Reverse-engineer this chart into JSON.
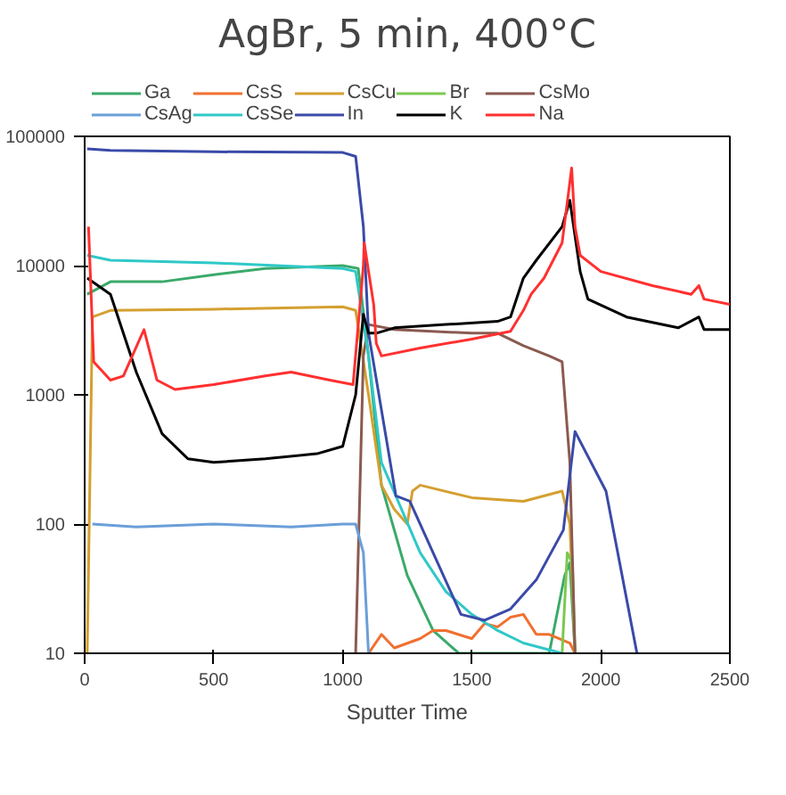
{
  "chart_data": {
    "type": "line",
    "title": "AgBr, 5 min, 400°C",
    "xlabel": "Sputter Time",
    "log": "y",
    "grid": false,
    "legend": "top",
    "marker": "none",
    "line_style": "solid",
    "xlim": [
      0,
      2500
    ],
    "xticks": [
      0,
      500,
      1000,
      1500,
      2000,
      2500
    ],
    "ylim": [
      10,
      100000
    ],
    "yticks": [
      10,
      100,
      1000,
      10000,
      100000
    ],
    "series": [
      {
        "name": "Ga",
        "color": "#3aaa6a",
        "x": [
          10,
          100,
          300,
          500,
          700,
          1000,
          1060,
          1100,
          1150,
          1250,
          1350,
          1450,
          1800,
          1860,
          1880,
          1900
        ],
        "values": [
          6000,
          7500,
          7500,
          8500,
          9500,
          10000,
          9500,
          2000,
          200,
          40,
          15,
          10,
          10,
          40,
          50,
          10
        ]
      },
      {
        "name": "CsS",
        "color": "#f07030",
        "x": [
          1100,
          1150,
          1200,
          1300,
          1350,
          1400,
          1500,
          1550,
          1600,
          1650,
          1700,
          1750,
          1800,
          1880,
          1900
        ],
        "values": [
          10,
          14,
          11,
          13,
          15,
          15,
          13,
          17,
          16,
          19,
          20,
          14,
          14,
          12,
          10
        ]
      },
      {
        "name": "CsCu",
        "color": "#d4a030",
        "x": [
          10,
          30,
          100,
          500,
          1000,
          1050,
          1100,
          1150,
          1200,
          1250,
          1270,
          1300,
          1500,
          1700,
          1850,
          1880,
          1900
        ],
        "values": [
          10,
          4000,
          4500,
          4600,
          4800,
          4500,
          1000,
          200,
          130,
          100,
          180,
          200,
          160,
          150,
          180,
          100,
          10
        ]
      },
      {
        "name": "Br",
        "color": "#7cc850",
        "x": [
          1850,
          1870,
          1890,
          1900
        ],
        "values": [
          10,
          60,
          50,
          10
        ]
      },
      {
        "name": "CsMo",
        "color": "#8b5a50",
        "x": [
          1050,
          1080,
          1100,
          1200,
          1500,
          1600,
          1700,
          1800,
          1850,
          1880,
          1900
        ],
        "values": [
          10,
          2000,
          3500,
          3200,
          3000,
          3000,
          2400,
          2000,
          1800,
          300,
          10
        ]
      },
      {
        "name": "CsAg",
        "color": "#6a9fd8",
        "x": [
          30,
          200,
          500,
          800,
          1000,
          1050,
          1080,
          1100
        ],
        "values": [
          100,
          95,
          100,
          95,
          100,
          100,
          60,
          10
        ]
      },
      {
        "name": "CsSe",
        "color": "#30c8c8",
        "x": [
          10,
          100,
          500,
          1000,
          1050,
          1100,
          1150,
          1300,
          1400,
          1500,
          1600,
          1700,
          1850
        ],
        "values": [
          12000,
          11000,
          10500,
          9500,
          9000,
          2000,
          300,
          60,
          30,
          20,
          15,
          12,
          10
        ]
      },
      {
        "name": "In",
        "color": "#3a4aa8",
        "x": [
          10,
          100,
          500,
          1000,
          1050,
          1080,
          1100,
          1206,
          1260,
          1458,
          1550,
          1650,
          1750,
          1855,
          1900,
          2020,
          2140
        ],
        "values": [
          80000,
          78000,
          76000,
          75000,
          70000,
          20000,
          3000,
          165,
          150,
          20,
          18,
          22,
          37,
          90,
          520,
          180,
          10
        ]
      },
      {
        "name": "K",
        "color": "#000000",
        "x": [
          10,
          100,
          200,
          300,
          400,
          500,
          700,
          900,
          1000,
          1050,
          1080,
          1100,
          1130,
          1200,
          1400,
          1600,
          1650,
          1700,
          1750,
          1850,
          1880,
          1920,
          1950,
          2100,
          2300,
          2380,
          2400,
          2500
        ],
        "values": [
          8000,
          6000,
          1500,
          500,
          320,
          300,
          320,
          350,
          400,
          1000,
          4200,
          3000,
          3000,
          3300,
          3500,
          3700,
          4000,
          8000,
          11000,
          20000,
          32000,
          9000,
          5500,
          4000,
          3300,
          4000,
          3200,
          3200
        ]
      },
      {
        "name": "Na",
        "color": "#ff3030",
        "x": [
          15,
          35,
          100,
          150,
          230,
          280,
          350,
          500,
          700,
          800,
          950,
          1040,
          1080,
          1083,
          1120,
          1130,
          1150,
          1300,
          1500,
          1650,
          1700,
          1730,
          1780,
          1850,
          1887,
          1900,
          1920,
          2000,
          2200,
          2350,
          2380,
          2400,
          2500
        ],
        "values": [
          20000,
          1800,
          1300,
          1400,
          3200,
          1300,
          1100,
          1200,
          1400,
          1500,
          1300,
          1200,
          10000,
          15000,
          5000,
          2500,
          2000,
          2300,
          2700,
          3100,
          4500,
          6000,
          8000,
          15000,
          57000,
          20000,
          12000,
          9000,
          7000,
          6000,
          7000,
          5500,
          5000
        ]
      }
    ]
  }
}
